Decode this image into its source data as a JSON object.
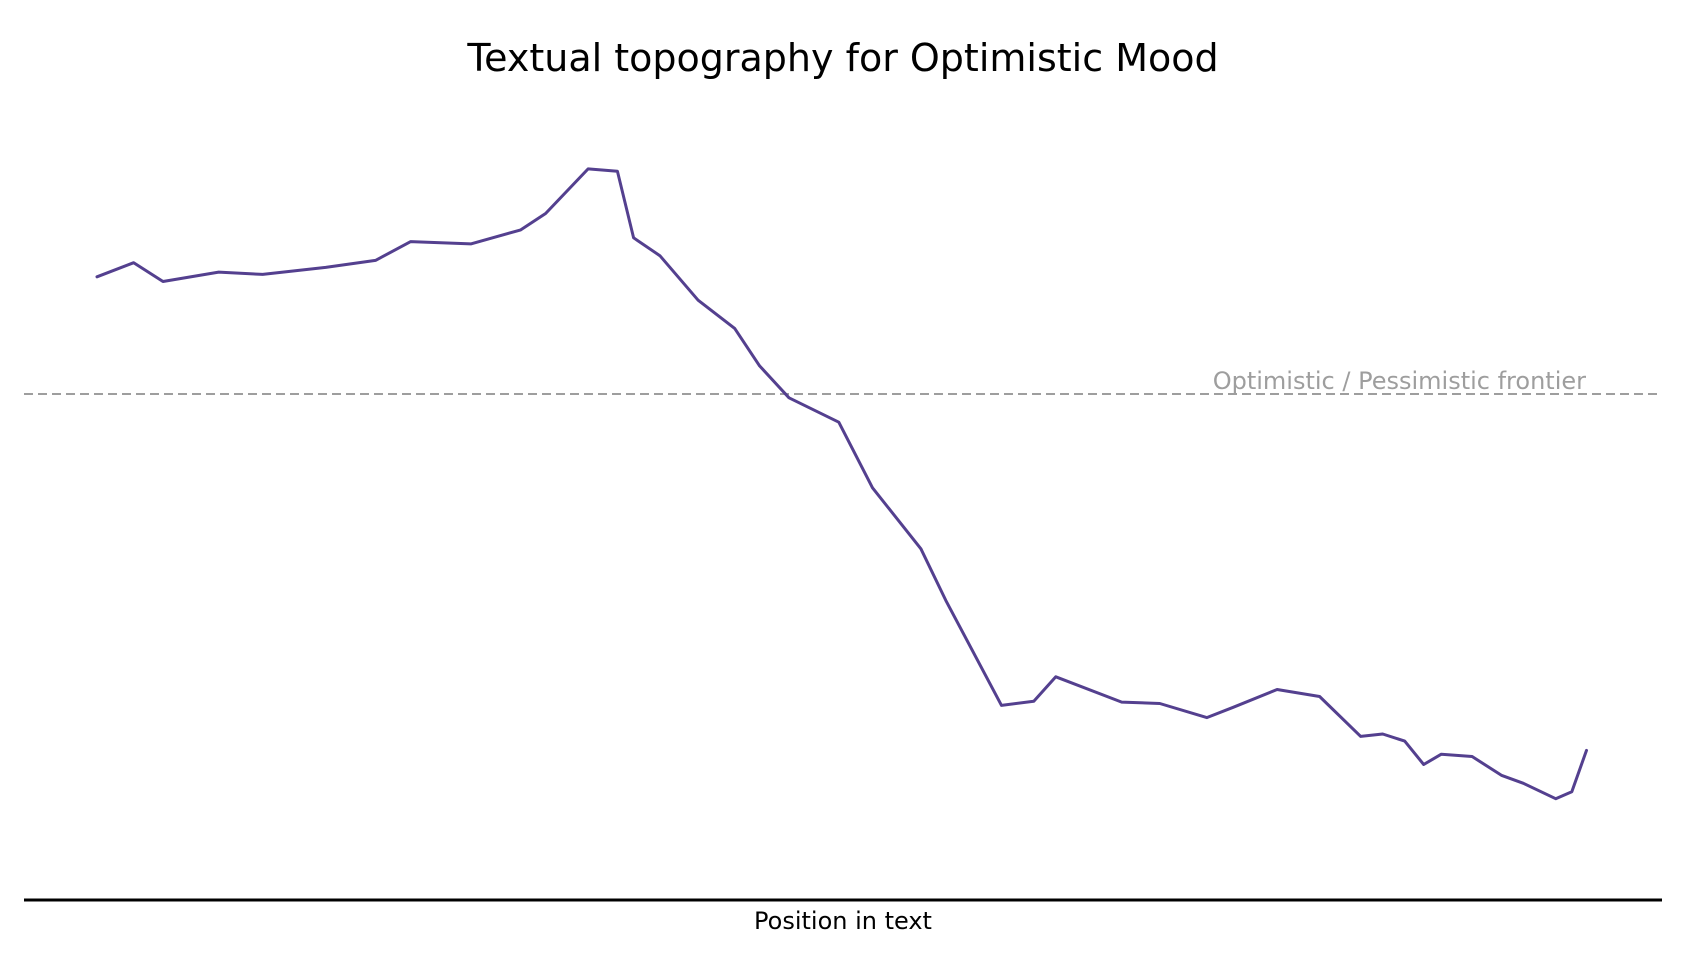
{
  "chart_data": {
    "type": "line",
    "title": "Textual topography for Optimistic Mood",
    "xlabel": "Position in text",
    "ylabel": "",
    "grid": false,
    "legend": "none",
    "threshold": {
      "label": "Optimistic / Pessimistic frontier",
      "y": 0
    },
    "colors": {
      "line": "#54408f",
      "threshold": "#9e9e9e",
      "axis": "#000000"
    },
    "xlim": [
      0,
      100
    ],
    "ylim": [
      -1,
      0.58
    ],
    "series": [
      {
        "x": [
          0,
          2.5,
          4.5,
          8.3,
          11.3,
          15.6,
          19,
          21.4,
          25.5,
          28.9,
          30.6,
          33.5,
          35.5,
          36.6,
          38.4,
          41,
          43.5,
          45.2,
          47.2,
          50.6,
          52.9,
          56.2,
          57.9,
          61.7,
          63.9,
          65.4,
          69.9,
          72.5,
          75.7,
          77.5,
          80.5,
          83.4,
          86.2,
          87.7,
          89.2,
          90.5,
          91.7,
          93.8,
          95.8,
          97.3,
          99.5,
          100.6,
          101.6
        ],
        "y": [
          0.25,
          0.28,
          0.24,
          0.26,
          0.255,
          0.27,
          0.285,
          0.325,
          0.32,
          0.35,
          0.385,
          0.48,
          0.475,
          0.333,
          0.295,
          0.2,
          0.14,
          0.06,
          -0.008,
          -0.06,
          -0.2,
          -0.33,
          -0.44,
          -0.664,
          -0.655,
          -0.603,
          -0.657,
          -0.66,
          -0.69,
          -0.668,
          -0.63,
          -0.645,
          -0.73,
          -0.725,
          -0.74,
          -0.79,
          -0.768,
          -0.773,
          -0.813,
          -0.83,
          -0.863,
          -0.848,
          -0.76
        ]
      }
    ]
  }
}
